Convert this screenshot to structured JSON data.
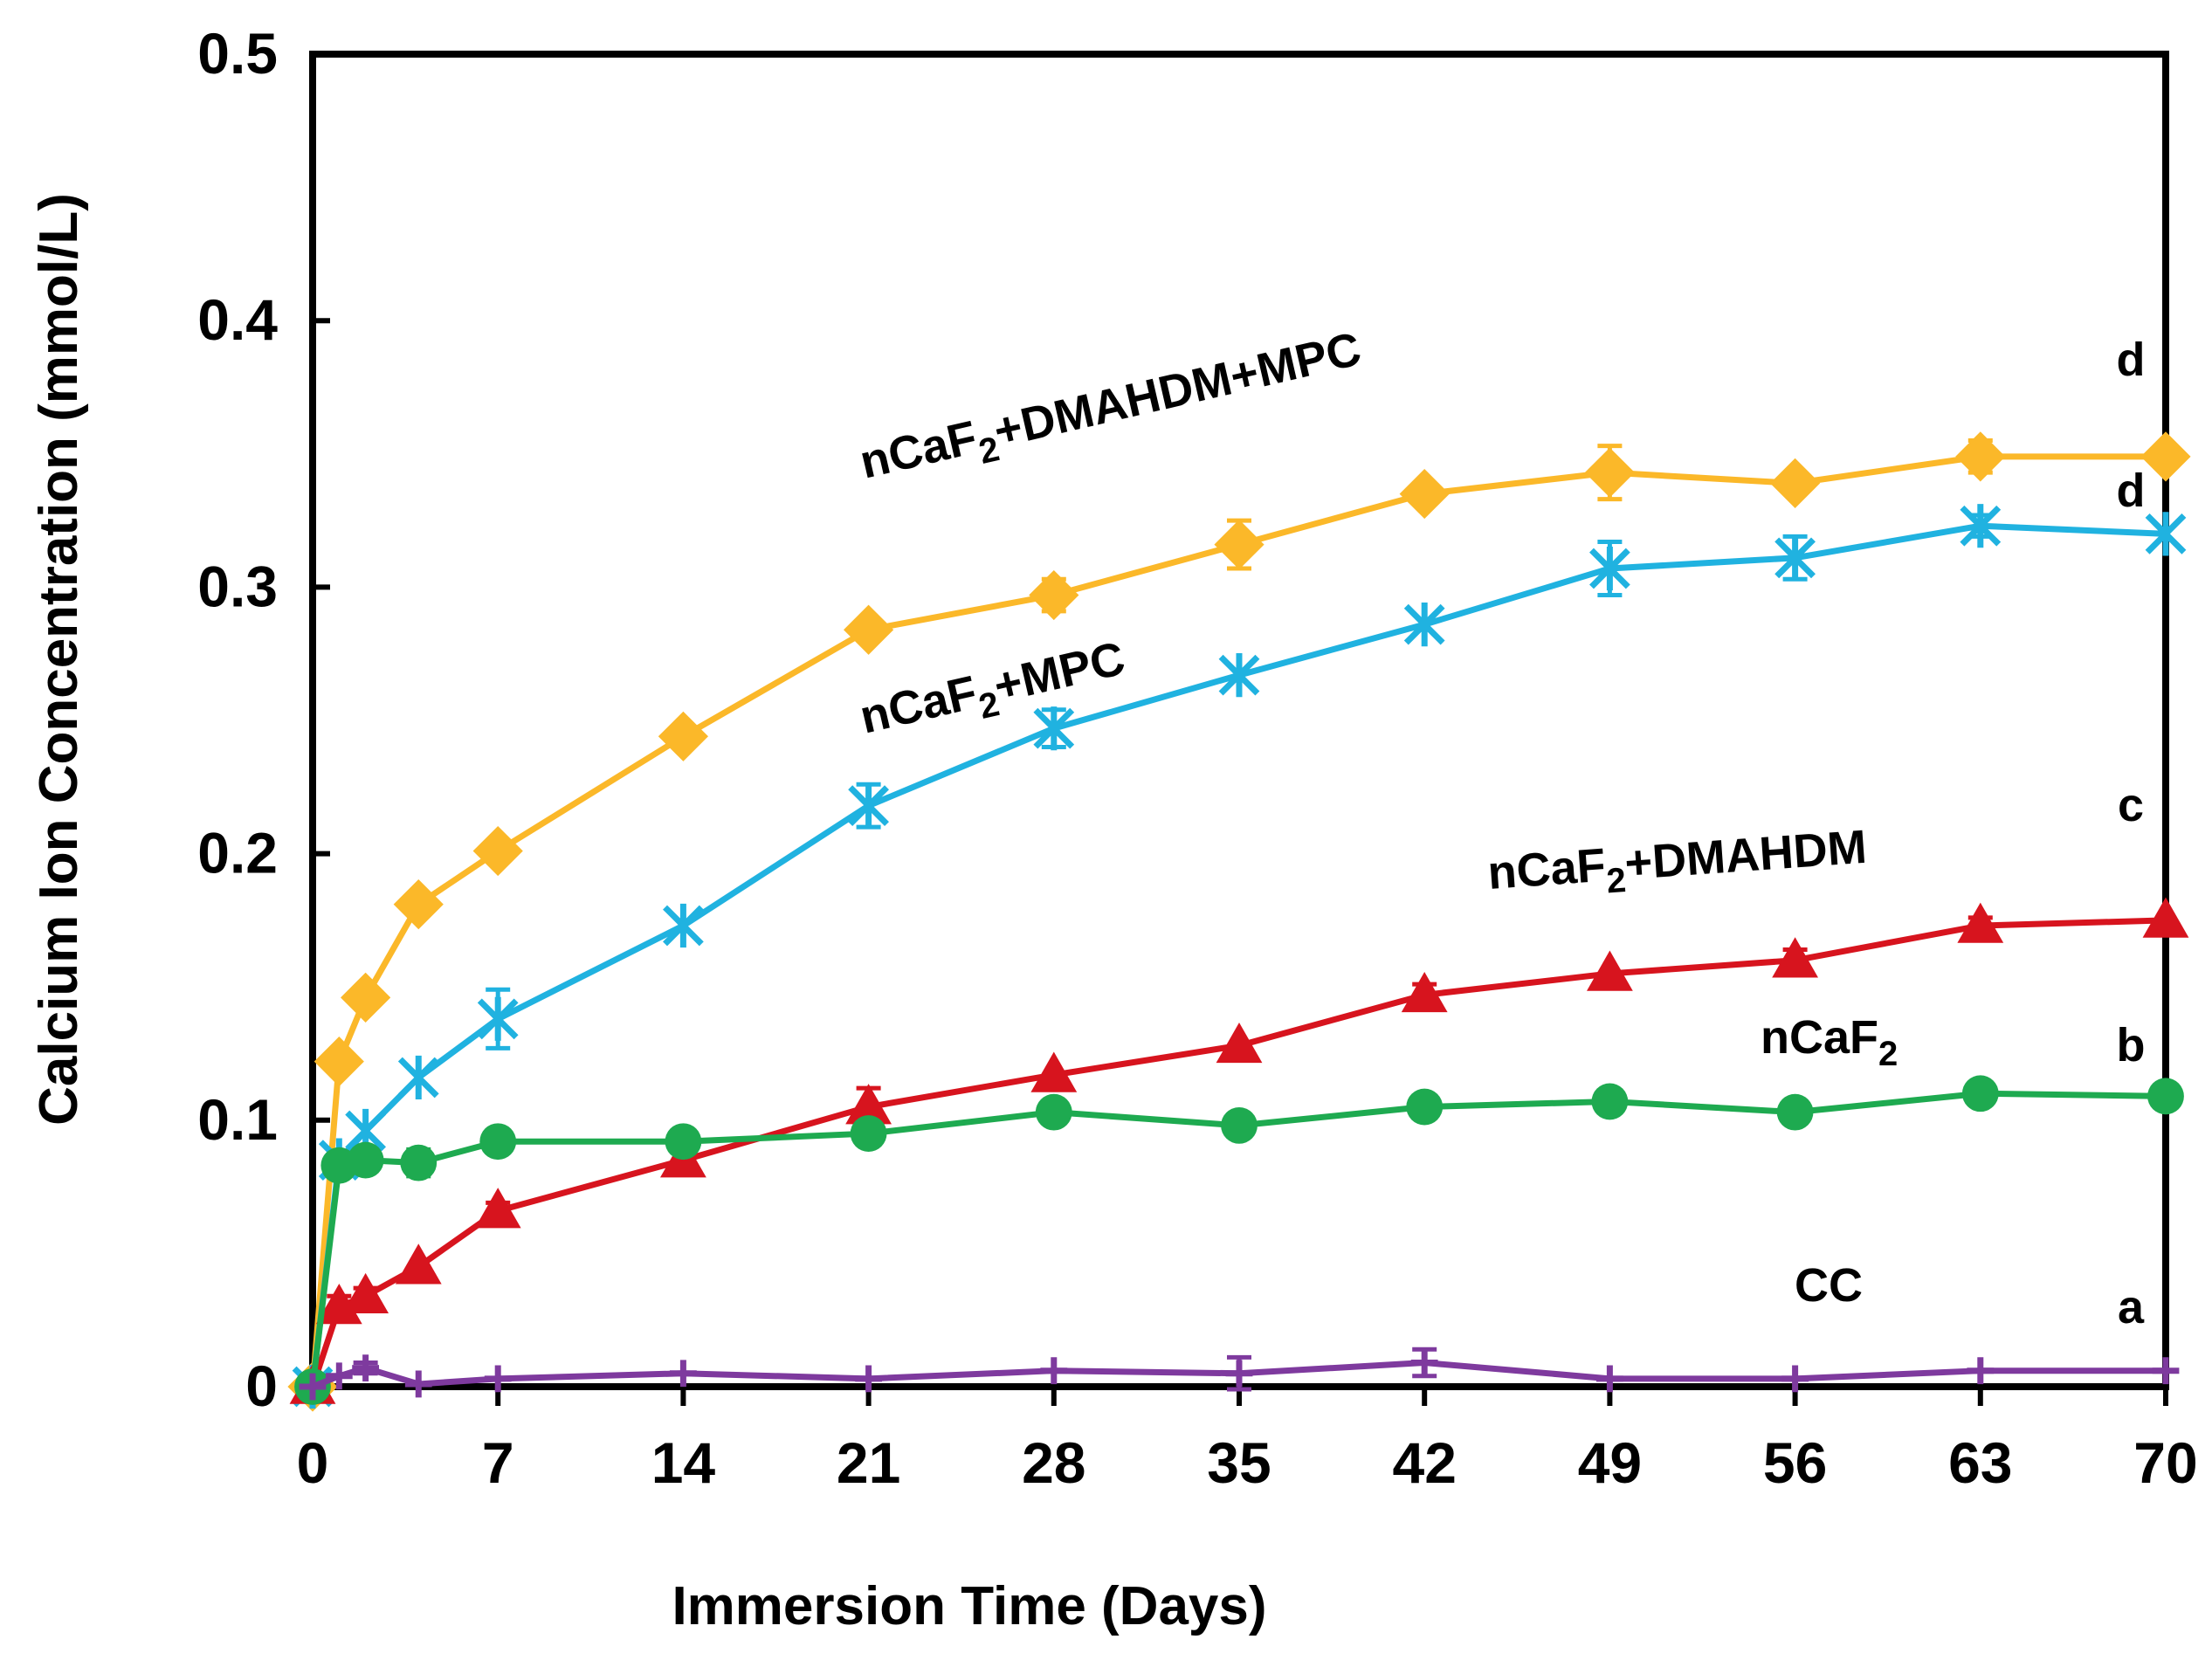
{
  "chart_data": {
    "type": "line",
    "xlabel": "Immersion Time (Days)",
    "ylabel": "Calcium Ion Concentration (mmol/L)",
    "xlim": [
      0,
      70
    ],
    "ylim": [
      0,
      0.5
    ],
    "x_ticks": [
      0,
      7,
      14,
      21,
      28,
      35,
      42,
      49,
      56,
      63,
      70
    ],
    "x_tick_labels": [
      "0",
      "7",
      "14",
      "21",
      "28",
      "35",
      "42",
      "49",
      "56",
      "63",
      "70"
    ],
    "y_ticks": [
      0,
      0.1,
      0.2,
      0.3,
      0.4,
      0.5
    ],
    "y_tick_labels": [
      "0",
      "0.1",
      "0.2",
      "0.3",
      "0.4",
      "0.5"
    ],
    "grid": false,
    "legend": "none",
    "series": [
      {
        "name": "nCaF2+DMAHDM+MPC",
        "label_main": "nCaF",
        "label_sub": "2",
        "label_tail": "+DMAHDM+MPC",
        "letter": "d",
        "color": "#FBB829",
        "marker": "diamond",
        "x": [
          0,
          1,
          2,
          4,
          7,
          14,
          21,
          28,
          35,
          42,
          49,
          56,
          63,
          70
        ],
        "y": [
          0.0,
          0.122,
          0.146,
          0.181,
          0.201,
          0.244,
          0.284,
          0.297,
          0.316,
          0.335,
          0.343,
          0.339,
          0.349,
          0.349
        ],
        "err": [
          0,
          0,
          0,
          0,
          0,
          0,
          0,
          0.006,
          0.009,
          0,
          0.01,
          0,
          0.006,
          0
        ]
      },
      {
        "name": "nCaF2+MPC",
        "label_main": "nCaF",
        "label_sub": "2",
        "label_tail": "+MPC",
        "letter": "d",
        "color": "#20B2E0",
        "marker": "asterisk",
        "x": [
          0,
          1,
          2,
          4,
          7,
          14,
          21,
          28,
          35,
          42,
          49,
          56,
          63,
          70
        ],
        "y": [
          0.0,
          0.085,
          0.096,
          0.116,
          0.138,
          0.173,
          0.218,
          0.247,
          0.267,
          0.286,
          0.307,
          0.311,
          0.323,
          0.32
        ],
        "err": [
          0,
          0,
          0,
          0,
          0.011,
          0,
          0.008,
          0.007,
          0,
          0,
          0.01,
          0.008,
          0.004,
          0
        ]
      },
      {
        "name": "nCaF2+DMAHDM",
        "label_main": "nCaF",
        "label_sub": "2",
        "label_tail": "+DMAHDM",
        "letter": "c",
        "color": "#D7141E",
        "marker": "triangle",
        "x": [
          0,
          1,
          2,
          4,
          7,
          14,
          21,
          28,
          35,
          42,
          49,
          56,
          63,
          70
        ],
        "y": [
          0.0,
          0.03,
          0.034,
          0.045,
          0.066,
          0.085,
          0.105,
          0.117,
          0.128,
          0.147,
          0.155,
          0.16,
          0.173,
          0.175
        ],
        "err": [
          0,
          0.004,
          0.003,
          0,
          0.003,
          0,
          0.007,
          0,
          0,
          0.004,
          0,
          0.004,
          0.003,
          0
        ]
      },
      {
        "name": "nCaF2",
        "label_main": "nCaF",
        "label_sub": "2",
        "label_tail": "",
        "letter": "b",
        "color": "#1EAA50",
        "marker": "circle",
        "x": [
          0,
          1,
          2,
          4,
          7,
          14,
          21,
          28,
          35,
          42,
          49,
          56,
          63,
          70
        ],
        "y": [
          0.0,
          0.083,
          0.085,
          0.084,
          0.092,
          0.092,
          0.095,
          0.103,
          0.098,
          0.105,
          0.107,
          0.103,
          0.11,
          0.109
        ],
        "err": [
          0,
          0,
          0,
          0.005,
          0.004,
          0,
          0,
          0.004,
          0.004,
          0.003,
          0.004,
          0,
          0.004,
          0
        ]
      },
      {
        "name": "CC",
        "label_main": "CC",
        "label_sub": "",
        "label_tail": "",
        "letter": "a",
        "color": "#7E3A9E",
        "marker": "plus",
        "x": [
          0,
          1,
          2,
          4,
          7,
          14,
          21,
          28,
          35,
          42,
          49,
          56,
          63,
          70
        ],
        "y": [
          0.0,
          0.004,
          0.007,
          0.001,
          0.003,
          0.005,
          0.003,
          0.006,
          0.005,
          0.009,
          0.003,
          0.003,
          0.006,
          0.006
        ],
        "err": [
          0,
          0,
          0.002,
          0,
          0,
          0,
          0,
          0,
          0.006,
          0.005,
          0,
          0,
          0,
          0
        ]
      }
    ]
  }
}
